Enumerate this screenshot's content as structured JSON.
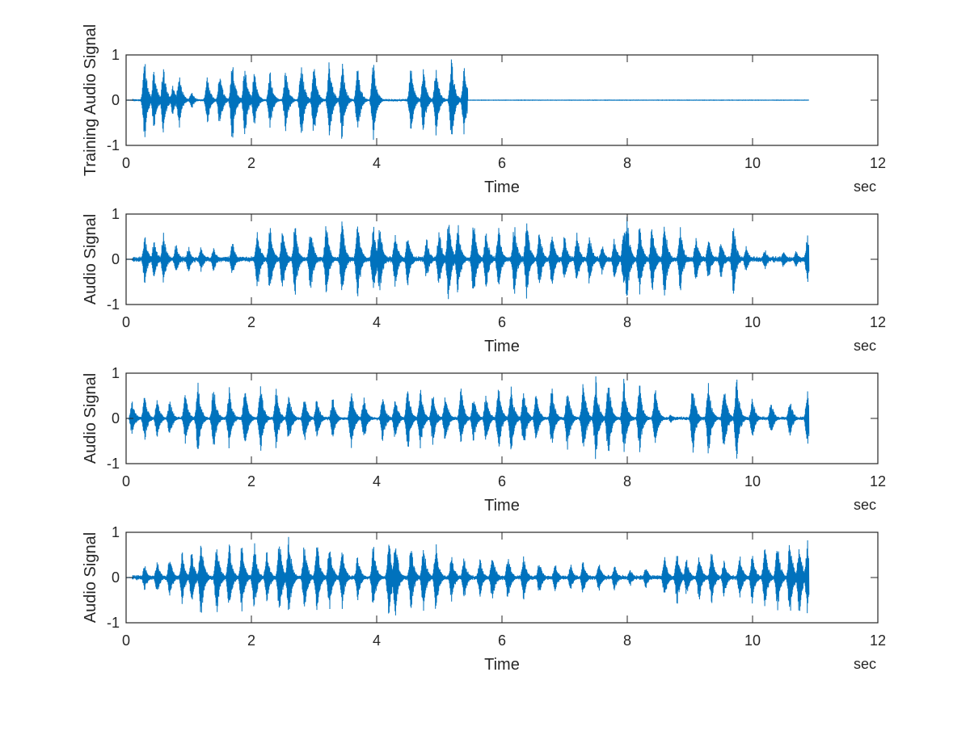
{
  "line_color": "#0072BD",
  "axis_color": "#262626",
  "chart_data": [
    {
      "type": "line",
      "ylabel": "Training Audio Signal",
      "xlabel": "Time",
      "xunit": "sec",
      "xlim": [
        0,
        12
      ],
      "ylim": [
        -1,
        1
      ],
      "xticks": [
        0,
        2,
        4,
        6,
        8,
        10,
        12
      ],
      "yticks": [
        -1,
        0,
        1
      ],
      "duration": 10.9,
      "active_range": [
        0.1,
        5.45
      ],
      "noise_floor": 0.02,
      "bursts": [
        [
          0.3,
          0.9
        ],
        [
          0.45,
          0.7
        ],
        [
          0.6,
          0.78
        ],
        [
          0.75,
          0.35
        ],
        [
          0.85,
          0.65
        ],
        [
          1.05,
          0.2
        ],
        [
          1.3,
          0.55
        ],
        [
          1.5,
          0.65
        ],
        [
          1.7,
          1.0
        ],
        [
          1.9,
          0.85
        ],
        [
          2.05,
          0.65
        ],
        [
          2.3,
          0.65
        ],
        [
          2.55,
          0.75
        ],
        [
          2.8,
          0.92
        ],
        [
          3.0,
          0.92
        ],
        [
          3.25,
          0.95
        ],
        [
          3.45,
          0.92
        ],
        [
          3.7,
          0.8
        ],
        [
          3.95,
          0.9
        ],
        [
          4.55,
          0.75
        ],
        [
          4.75,
          0.72
        ],
        [
          4.95,
          0.8
        ],
        [
          5.2,
          0.95
        ],
        [
          5.4,
          0.85
        ]
      ]
    },
    {
      "type": "line",
      "ylabel": "Audio Signal",
      "xlabel": "Time",
      "xunit": "sec",
      "xlim": [
        0,
        12
      ],
      "ylim": [
        -1,
        1
      ],
      "xticks": [
        0,
        2,
        4,
        6,
        8,
        10,
        12
      ],
      "yticks": [
        -1,
        0,
        1
      ],
      "duration": 10.9,
      "active_range": [
        0.1,
        10.9
      ],
      "noise_floor": 0.05,
      "bursts": [
        [
          0.3,
          0.55
        ],
        [
          0.45,
          0.45
        ],
        [
          0.6,
          0.6
        ],
        [
          0.8,
          0.35
        ],
        [
          1.0,
          0.3
        ],
        [
          1.2,
          0.3
        ],
        [
          1.4,
          0.3
        ],
        [
          1.7,
          0.4
        ],
        [
          2.1,
          0.75
        ],
        [
          2.3,
          0.8
        ],
        [
          2.5,
          0.75
        ],
        [
          2.7,
          0.85
        ],
        [
          2.95,
          0.8
        ],
        [
          3.2,
          0.85
        ],
        [
          3.45,
          0.9
        ],
        [
          3.7,
          1.0
        ],
        [
          3.95,
          0.8
        ],
        [
          4.05,
          0.85
        ],
        [
          4.3,
          0.65
        ],
        [
          4.5,
          0.6
        ],
        [
          4.8,
          0.5
        ],
        [
          5.0,
          0.7
        ],
        [
          5.15,
          0.95
        ],
        [
          5.3,
          0.85
        ],
        [
          5.55,
          0.9
        ],
        [
          5.75,
          0.7
        ],
        [
          5.95,
          0.8
        ],
        [
          6.2,
          0.85
        ],
        [
          6.4,
          0.95
        ],
        [
          6.6,
          0.7
        ],
        [
          6.8,
          0.65
        ],
        [
          7.0,
          0.55
        ],
        [
          7.2,
          0.6
        ],
        [
          7.4,
          0.6
        ],
        [
          7.6,
          0.35
        ],
        [
          7.8,
          0.5
        ],
        [
          7.95,
          0.75
        ],
        [
          8.0,
          0.95
        ],
        [
          8.2,
          0.85
        ],
        [
          8.4,
          0.8
        ],
        [
          8.6,
          0.9
        ],
        [
          8.85,
          0.75
        ],
        [
          9.1,
          0.55
        ],
        [
          9.3,
          0.5
        ],
        [
          9.5,
          0.45
        ],
        [
          9.7,
          0.8
        ],
        [
          9.9,
          0.3
        ],
        [
          10.2,
          0.25
        ],
        [
          10.5,
          0.2
        ],
        [
          10.7,
          0.2
        ],
        [
          10.88,
          0.55
        ]
      ]
    },
    {
      "type": "line",
      "ylabel": "Audio Signal",
      "xlabel": "Time",
      "xunit": "sec",
      "xlim": [
        0,
        12
      ],
      "ylim": [
        -1,
        1
      ],
      "xticks": [
        0,
        2,
        4,
        6,
        8,
        10,
        12
      ],
      "yticks": [
        -1,
        0,
        1
      ],
      "duration": 10.9,
      "active_range": [
        0.05,
        10.9
      ],
      "noise_floor": 0.03,
      "bursts": [
        [
          0.1,
          0.4
        ],
        [
          0.3,
          0.55
        ],
        [
          0.5,
          0.45
        ],
        [
          0.7,
          0.45
        ],
        [
          0.95,
          0.6
        ],
        [
          1.15,
          0.8
        ],
        [
          1.4,
          0.75
        ],
        [
          1.65,
          0.7
        ],
        [
          1.9,
          0.8
        ],
        [
          2.15,
          0.8
        ],
        [
          2.4,
          0.7
        ],
        [
          2.6,
          0.6
        ],
        [
          2.85,
          0.55
        ],
        [
          3.05,
          0.5
        ],
        [
          3.3,
          0.5
        ],
        [
          3.6,
          0.7
        ],
        [
          3.8,
          0.55
        ],
        [
          4.1,
          0.55
        ],
        [
          4.3,
          0.5
        ],
        [
          4.5,
          0.75
        ],
        [
          4.7,
          0.7
        ],
        [
          4.9,
          0.6
        ],
        [
          5.1,
          0.6
        ],
        [
          5.35,
          0.7
        ],
        [
          5.55,
          0.55
        ],
        [
          5.75,
          0.6
        ],
        [
          5.95,
          0.75
        ],
        [
          6.15,
          0.8
        ],
        [
          6.35,
          0.7
        ],
        [
          6.55,
          0.6
        ],
        [
          6.8,
          0.7
        ],
        [
          7.05,
          0.75
        ],
        [
          7.3,
          0.9
        ],
        [
          7.5,
          0.95
        ],
        [
          7.7,
          0.95
        ],
        [
          7.95,
          0.9
        ],
        [
          8.2,
          0.8
        ],
        [
          8.45,
          0.7
        ],
        [
          8.7,
          0.1
        ],
        [
          9.05,
          0.8
        ],
        [
          9.3,
          0.85
        ],
        [
          9.55,
          0.85
        ],
        [
          9.75,
          0.95
        ],
        [
          10.0,
          0.5
        ],
        [
          10.3,
          0.4
        ],
        [
          10.6,
          0.45
        ],
        [
          10.88,
          0.65
        ]
      ]
    },
    {
      "type": "line",
      "ylabel": "Audio Signal",
      "xlabel": "Time",
      "xunit": "sec",
      "xlim": [
        0,
        12
      ],
      "ylim": [
        -1,
        1
      ],
      "xticks": [
        0,
        2,
        4,
        6,
        8,
        10,
        12
      ],
      "yticks": [
        -1,
        0,
        1
      ],
      "duration": 10.9,
      "active_range": [
        0.1,
        10.9
      ],
      "noise_floor": 0.04,
      "bursts": [
        [
          0.3,
          0.3
        ],
        [
          0.5,
          0.4
        ],
        [
          0.7,
          0.5
        ],
        [
          0.9,
          0.6
        ],
        [
          1.05,
          0.6
        ],
        [
          1.2,
          0.95
        ],
        [
          1.45,
          0.85
        ],
        [
          1.65,
          0.8
        ],
        [
          1.85,
          0.75
        ],
        [
          2.05,
          0.8
        ],
        [
          2.25,
          0.6
        ],
        [
          2.45,
          0.9
        ],
        [
          2.6,
          0.95
        ],
        [
          2.85,
          0.8
        ],
        [
          3.05,
          0.85
        ],
        [
          3.25,
          0.8
        ],
        [
          3.45,
          0.7
        ],
        [
          3.7,
          0.5
        ],
        [
          3.95,
          0.75
        ],
        [
          4.2,
          0.9
        ],
        [
          4.3,
          0.95
        ],
        [
          4.55,
          0.75
        ],
        [
          4.75,
          0.8
        ],
        [
          4.95,
          0.8
        ],
        [
          5.2,
          0.55
        ],
        [
          5.4,
          0.5
        ],
        [
          5.65,
          0.45
        ],
        [
          5.85,
          0.6
        ],
        [
          6.1,
          0.55
        ],
        [
          6.35,
          0.5
        ],
        [
          6.6,
          0.4
        ],
        [
          6.85,
          0.35
        ],
        [
          7.1,
          0.3
        ],
        [
          7.3,
          0.4
        ],
        [
          7.55,
          0.35
        ],
        [
          7.8,
          0.3
        ],
        [
          8.05,
          0.2
        ],
        [
          8.3,
          0.25
        ],
        [
          8.6,
          0.5
        ],
        [
          8.8,
          0.6
        ],
        [
          8.95,
          0.45
        ],
        [
          9.15,
          0.55
        ],
        [
          9.35,
          0.6
        ],
        [
          9.55,
          0.45
        ],
        [
          9.8,
          0.55
        ],
        [
          10.0,
          0.6
        ],
        [
          10.2,
          0.75
        ],
        [
          10.4,
          0.8
        ],
        [
          10.6,
          0.95
        ],
        [
          10.75,
          0.85
        ],
        [
          10.88,
          0.9
        ]
      ]
    }
  ]
}
